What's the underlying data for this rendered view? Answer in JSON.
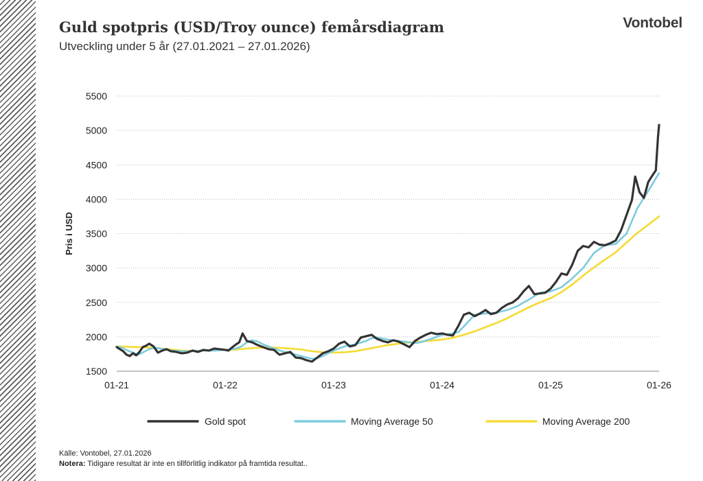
{
  "header": {
    "title": "Guld spotpris (USD/Troy ounce) femårsdiagram",
    "subtitle": "Utveckling under 5 år (27.01.2021 – 27.01.2026)",
    "logo": "Vontobel"
  },
  "footer": {
    "source": "Källe: Vontobel, 27.01.2026",
    "note_label": "Notera:",
    "note_text": " Tidigare resultat är inte en tillförlitlig indikator på framtida resultat.."
  },
  "colors": {
    "gold": "#333333",
    "ma50": "#7ccbdc",
    "ma200": "#f5dc3c",
    "grid": "#bbbbbb"
  },
  "chart_data": {
    "type": "line",
    "title": "Guld spotpris (USD/Troy ounce) femårsdiagram",
    "xlabel": "",
    "ylabel": "Pris i USD",
    "ylim": [
      1500,
      5500
    ],
    "yticks": [
      1500,
      2000,
      2500,
      3000,
      3500,
      4000,
      4500,
      5000,
      5500
    ],
    "xlim": [
      2021.0,
      2026.0
    ],
    "xticks": [
      {
        "x": 2021.0,
        "label": "01-21"
      },
      {
        "x": 2022.0,
        "label": "01-22"
      },
      {
        "x": 2023.0,
        "label": "01-23"
      },
      {
        "x": 2024.0,
        "label": "01-24"
      },
      {
        "x": 2025.0,
        "label": "01-25"
      },
      {
        "x": 2026.0,
        "label": "01-26"
      }
    ],
    "grid": true,
    "legend_position": "bottom",
    "series": [
      {
        "name": "Gold spot",
        "color": "#333333",
        "x": [
          2021.0,
          2021.03,
          2021.06,
          2021.09,
          2021.12,
          2021.15,
          2021.18,
          2021.21,
          2021.24,
          2021.27,
          2021.3,
          2021.34,
          2021.38,
          2021.42,
          2021.46,
          2021.5,
          2021.55,
          2021.6,
          2021.65,
          2021.7,
          2021.75,
          2021.8,
          2021.85,
          2021.9,
          2021.95,
          2022.0,
          2022.03,
          2022.06,
          2022.1,
          2022.13,
          2022.16,
          2022.2,
          2022.25,
          2022.3,
          2022.35,
          2022.4,
          2022.45,
          2022.5,
          2022.55,
          2022.6,
          2022.65,
          2022.7,
          2022.75,
          2022.8,
          2022.85,
          2022.9,
          2022.95,
          2023.0,
          2023.05,
          2023.1,
          2023.15,
          2023.2,
          2023.25,
          2023.3,
          2023.35,
          2023.4,
          2023.45,
          2023.5,
          2023.55,
          2023.6,
          2023.65,
          2023.7,
          2023.75,
          2023.8,
          2023.85,
          2023.9,
          2023.95,
          2024.0,
          2024.05,
          2024.1,
          2024.15,
          2024.2,
          2024.25,
          2024.3,
          2024.35,
          2024.4,
          2024.45,
          2024.5,
          2024.55,
          2024.6,
          2024.65,
          2024.7,
          2024.75,
          2024.8,
          2024.85,
          2024.9,
          2024.95,
          2025.0,
          2025.05,
          2025.1,
          2025.15,
          2025.2,
          2025.25,
          2025.3,
          2025.35,
          2025.4,
          2025.45,
          2025.5,
          2025.55,
          2025.6,
          2025.65,
          2025.7,
          2025.75,
          2025.78,
          2025.82,
          2025.86,
          2025.9,
          2025.94,
          2025.97,
          2025.99,
          2026.0
        ],
        "values": [
          1850,
          1820,
          1790,
          1740,
          1720,
          1760,
          1730,
          1780,
          1850,
          1870,
          1900,
          1860,
          1770,
          1800,
          1820,
          1790,
          1780,
          1760,
          1770,
          1800,
          1780,
          1810,
          1800,
          1830,
          1820,
          1810,
          1800,
          1840,
          1890,
          1920,
          2050,
          1940,
          1920,
          1880,
          1850,
          1820,
          1810,
          1740,
          1760,
          1780,
          1700,
          1690,
          1660,
          1640,
          1700,
          1760,
          1790,
          1830,
          1900,
          1930,
          1860,
          1880,
          1990,
          2010,
          2030,
          1970,
          1940,
          1920,
          1950,
          1930,
          1890,
          1850,
          1940,
          1990,
          2030,
          2060,
          2040,
          2050,
          2030,
          2020,
          2160,
          2320,
          2350,
          2300,
          2340,
          2390,
          2330,
          2350,
          2420,
          2470,
          2500,
          2560,
          2660,
          2740,
          2620,
          2630,
          2640,
          2700,
          2800,
          2920,
          2900,
          3050,
          3250,
          3320,
          3300,
          3380,
          3340,
          3330,
          3360,
          3400,
          3550,
          3770,
          3990,
          4330,
          4100,
          4020,
          4250,
          4350,
          4420,
          4900,
          5080
        ]
      },
      {
        "name": "Moving Average 50",
        "color": "#7ccbdc",
        "x": [
          2021.0,
          2021.05,
          2021.1,
          2021.15,
          2021.2,
          2021.25,
          2021.3,
          2021.35,
          2021.4,
          2021.5,
          2021.6,
          2021.7,
          2021.8,
          2021.9,
          2022.0,
          2022.05,
          2022.1,
          2022.15,
          2022.2,
          2022.25,
          2022.3,
          2022.35,
          2022.4,
          2022.5,
          2022.6,
          2022.7,
          2022.75,
          2022.8,
          2022.85,
          2022.9,
          2022.95,
          2023.0,
          2023.1,
          2023.2,
          2023.3,
          2023.35,
          2023.4,
          2023.5,
          2023.6,
          2023.7,
          2023.75,
          2023.8,
          2023.9,
          2024.0,
          2024.1,
          2024.15,
          2024.2,
          2024.3,
          2024.4,
          2024.5,
          2024.6,
          2024.7,
          2024.75,
          2024.8,
          2024.9,
          2025.0,
          2025.1,
          2025.2,
          2025.3,
          2025.4,
          2025.5,
          2025.6,
          2025.7,
          2025.8,
          2025.9,
          2025.95,
          2026.0
        ],
        "values": [
          1860,
          1840,
          1800,
          1770,
          1740,
          1780,
          1820,
          1840,
          1830,
          1800,
          1790,
          1790,
          1800,
          1800,
          1810,
          1820,
          1830,
          1860,
          1920,
          1950,
          1930,
          1890,
          1860,
          1800,
          1760,
          1720,
          1700,
          1680,
          1690,
          1720,
          1760,
          1800,
          1860,
          1890,
          1940,
          1980,
          1990,
          1960,
          1940,
          1920,
          1910,
          1920,
          1970,
          2030,
          2050,
          2070,
          2150,
          2320,
          2340,
          2350,
          2390,
          2450,
          2500,
          2540,
          2640,
          2660,
          2720,
          2850,
          3000,
          3220,
          3330,
          3350,
          3500,
          3870,
          4120,
          4250,
          4380
        ]
      },
      {
        "name": "Moving Average 200",
        "color": "#f5dc3c",
        "x": [
          2021.0,
          2021.1,
          2021.2,
          2021.3,
          2021.4,
          2021.5,
          2021.6,
          2021.7,
          2021.8,
          2021.9,
          2022.0,
          2022.1,
          2022.2,
          2022.3,
          2022.4,
          2022.5,
          2022.6,
          2022.7,
          2022.8,
          2022.9,
          2023.0,
          2023.1,
          2023.2,
          2023.3,
          2023.4,
          2023.5,
          2023.6,
          2023.7,
          2023.8,
          2023.9,
          2024.0,
          2024.1,
          2024.2,
          2024.3,
          2024.4,
          2024.5,
          2024.6,
          2024.7,
          2024.8,
          2024.9,
          2025.0,
          2025.1,
          2025.2,
          2025.3,
          2025.4,
          2025.5,
          2025.6,
          2025.7,
          2025.8,
          2025.9,
          2026.0
        ],
        "values": [
          1860,
          1855,
          1850,
          1845,
          1830,
          1815,
          1800,
          1795,
          1800,
          1805,
          1810,
          1815,
          1830,
          1840,
          1845,
          1840,
          1830,
          1815,
          1790,
          1775,
          1770,
          1775,
          1790,
          1820,
          1850,
          1880,
          1900,
          1920,
          1930,
          1945,
          1960,
          1985,
          2030,
          2080,
          2140,
          2200,
          2270,
          2350,
          2430,
          2500,
          2560,
          2650,
          2760,
          2890,
          3010,
          3120,
          3230,
          3370,
          3510,
          3630,
          3750
        ]
      }
    ]
  }
}
